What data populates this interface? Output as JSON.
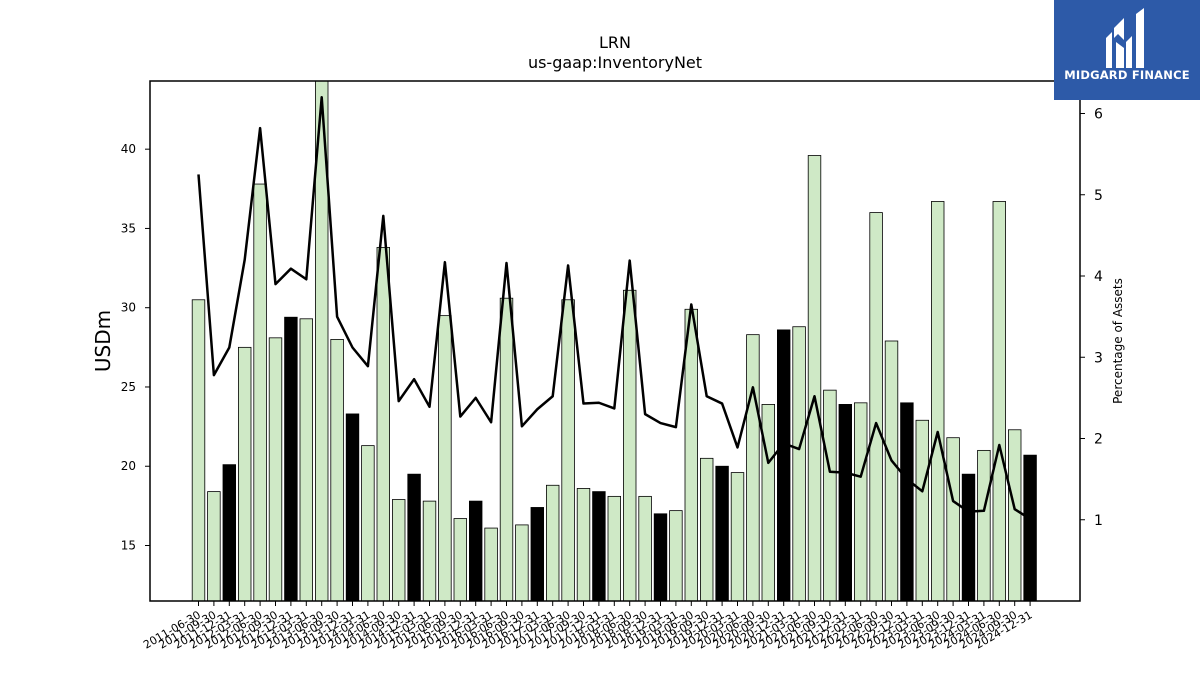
{
  "logo": {
    "text": "MIDGARD FINANCE"
  },
  "chart_data": {
    "type": "bar",
    "title": "LRN",
    "subtitle": "us-gaap:InventoryNet",
    "ylabel": "USDm",
    "y2label": "Percentage of Assets",
    "ylim": [
      11.5,
      44.3
    ],
    "y2lim": [
      0,
      6.4
    ],
    "yticks": [
      15,
      20,
      25,
      30,
      35,
      40
    ],
    "y2ticks": [
      1,
      2,
      3,
      4,
      5,
      6
    ],
    "categories": [
      "2011-06-30",
      "2011-09-30",
      "2011-12-31",
      "2012-03-31",
      "2012-06-30",
      "2012-09-30",
      "2012-12-31",
      "2013-03-31",
      "2013-06-30",
      "2013-09-30",
      "2013-12-31",
      "2014-03-31",
      "2014-06-30",
      "2014-09-30",
      "2014-12-31",
      "2015-03-31",
      "2015-06-30",
      "2015-09-30",
      "2015-12-31",
      "2016-03-31",
      "2016-06-30",
      "2016-09-30",
      "2016-12-31",
      "2017-03-31",
      "2017-06-30",
      "2017-09-30",
      "2017-12-31",
      "2018-03-31",
      "2018-06-30",
      "2018-09-30",
      "2018-12-31",
      "2019-03-31",
      "2019-06-30",
      "2019-09-30",
      "2019-12-31",
      "2020-03-31",
      "2020-06-30",
      "2020-09-30",
      "2020-12-31",
      "2021-03-31",
      "2021-06-30",
      "2021-09-30",
      "2021-12-31",
      "2022-03-31",
      "2022-06-30",
      "2022-09-30",
      "2022-12-31",
      "2023-03-31",
      "2023-06-30",
      "2023-09-30",
      "2023-12-31",
      "2024-03-31",
      "2024-06-30",
      "2024-09-30",
      "2024-12-31"
    ],
    "values": [
      30.5,
      18.4,
      20.1,
      27.5,
      37.8,
      28.1,
      29.4,
      29.3,
      44.5,
      28.0,
      23.3,
      21.3,
      33.8,
      17.9,
      19.5,
      17.8,
      29.5,
      16.7,
      17.8,
      16.1,
      30.6,
      16.3,
      17.4,
      18.8,
      30.5,
      18.6,
      18.4,
      18.1,
      31.1,
      18.1,
      17.0,
      17.2,
      29.9,
      20.5,
      20.0,
      19.6,
      28.3,
      23.9,
      28.6,
      28.8,
      39.6,
      24.8,
      23.9,
      24.0,
      36.0,
      27.9,
      24.0,
      22.9,
      36.7,
      21.8,
      19.5,
      21.0,
      36.7,
      22.3,
      20.7
    ],
    "highlight": [
      false,
      false,
      true,
      false,
      false,
      false,
      true,
      false,
      false,
      false,
      true,
      false,
      false,
      false,
      true,
      false,
      false,
      false,
      true,
      false,
      false,
      false,
      true,
      false,
      false,
      false,
      true,
      false,
      false,
      false,
      true,
      false,
      false,
      false,
      true,
      false,
      false,
      false,
      true,
      false,
      false,
      false,
      true,
      false,
      false,
      false,
      true,
      false,
      false,
      false,
      true,
      false,
      false,
      false,
      true
    ],
    "series": [
      {
        "values": [
          5.25,
          2.78,
          3.12,
          4.2,
          5.82,
          3.9,
          4.09,
          3.96,
          6.2,
          3.5,
          3.12,
          2.89,
          4.74,
          2.46,
          2.73,
          2.39,
          4.17,
          2.27,
          2.5,
          2.2,
          4.16,
          2.15,
          2.36,
          2.52,
          4.13,
          2.43,
          2.44,
          2.37,
          4.19,
          2.3,
          2.19,
          2.14,
          3.65,
          2.52,
          2.43,
          1.89,
          2.63,
          1.7,
          1.94,
          1.87,
          2.52,
          1.59,
          1.58,
          1.53,
          2.19,
          1.73,
          1.5,
          1.35,
          2.08,
          1.23,
          1.1,
          1.11,
          1.92,
          1.13,
          1.01
        ]
      }
    ],
    "colors": {
      "bar": "#cfe9c6",
      "highlight_bar": "#000000",
      "bar_edge": "#000000",
      "line": "#000000"
    },
    "grid": false
  }
}
